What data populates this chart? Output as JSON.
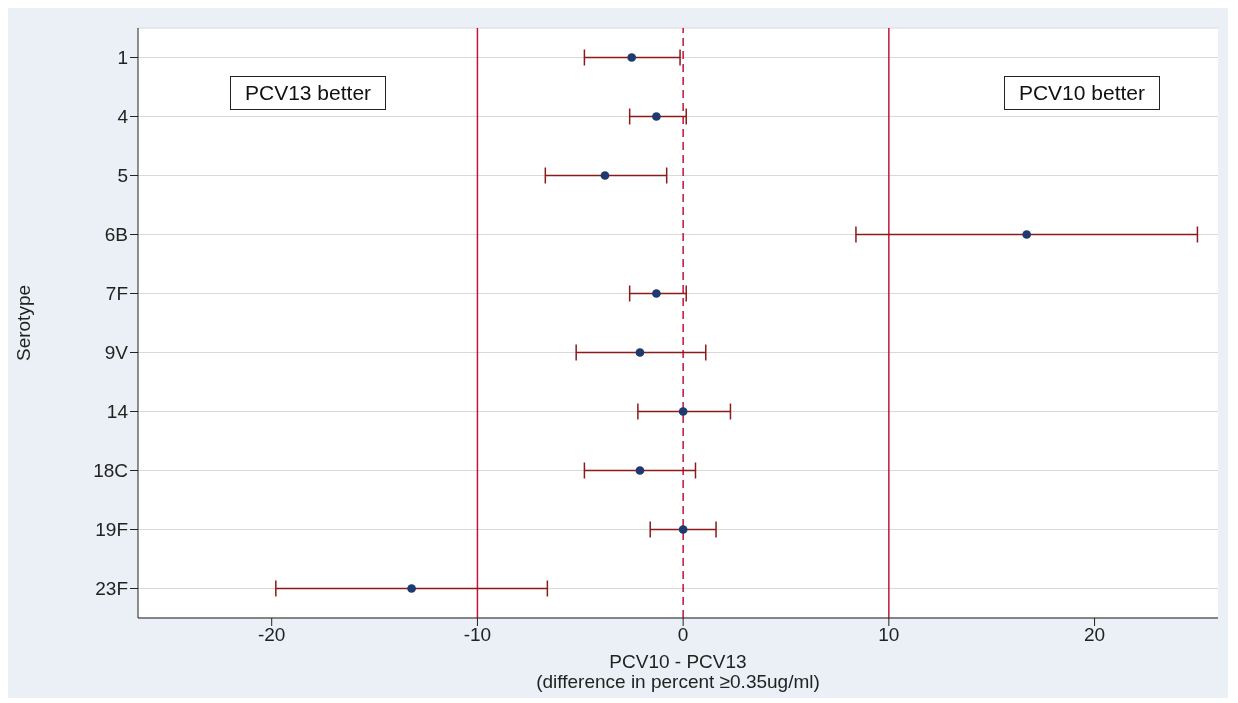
{
  "chart_data": {
    "type": "scatter",
    "orientation": "horizontal",
    "xlabel": "PCV10 - PCV13\n(difference in percent ≥0.35ug/ml)",
    "ylabel": "Serotype",
    "categories": [
      "1",
      "4",
      "5",
      "6B",
      "7F",
      "9V",
      "14",
      "18C",
      "19F",
      "23F"
    ],
    "values": [
      -2.5,
      -1.3,
      -3.8,
      16.7,
      -1.3,
      -2.1,
      0,
      -2.1,
      0,
      -13.2
    ],
    "errors": [
      [
        -4.8,
        -0.15
      ],
      [
        -2.6,
        0.15
      ],
      [
        -6.7,
        -0.8
      ],
      [
        8.4,
        25.0
      ],
      [
        -2.6,
        0.15
      ],
      [
        -5.2,
        1.1
      ],
      [
        -2.2,
        2.3
      ],
      [
        -4.8,
        0.6
      ],
      [
        -1.6,
        1.6
      ],
      [
        -19.8,
        -6.6
      ]
    ],
    "color": "#1f3a6e",
    "xlim": [
      -26.5,
      26
    ],
    "xticks": [
      -20,
      -10,
      0,
      10,
      20
    ],
    "grid": "y",
    "marker": "circle",
    "ref_lines": [
      {
        "axis": "x",
        "value": -10,
        "color": "#c0143c",
        "line_style": "solid"
      },
      {
        "axis": "x",
        "value": 0,
        "color": "#c0143c",
        "line_style": "dashed"
      },
      {
        "axis": "x",
        "value": 10,
        "color": "#c0143c",
        "line_style": "solid"
      }
    ],
    "annotations": [
      "PCV13 better",
      "PCV10 better"
    ]
  }
}
